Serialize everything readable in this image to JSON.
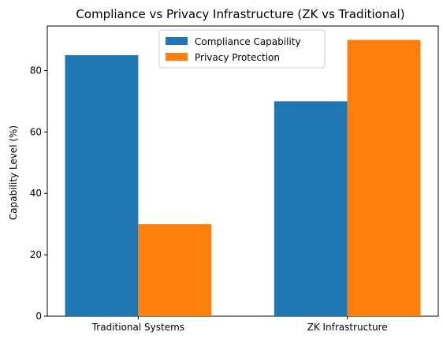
{
  "chart_data": {
    "type": "bar",
    "title": "Compliance vs Privacy Infrastructure (ZK vs Traditional)",
    "xlabel": "",
    "ylabel": "Capability Level (%)",
    "categories": [
      "Traditional Systems",
      "ZK Infrastructure"
    ],
    "series": [
      {
        "name": "Compliance Capability",
        "values": [
          85,
          70
        ],
        "color": "#1f77b4"
      },
      {
        "name": "Privacy Protection",
        "values": [
          30,
          90
        ],
        "color": "#ff7f0e"
      }
    ],
    "ylim": [
      0,
      94.5
    ],
    "yticks": [
      0,
      20,
      40,
      60,
      80
    ],
    "grid": false,
    "legend_position": "top-center"
  }
}
